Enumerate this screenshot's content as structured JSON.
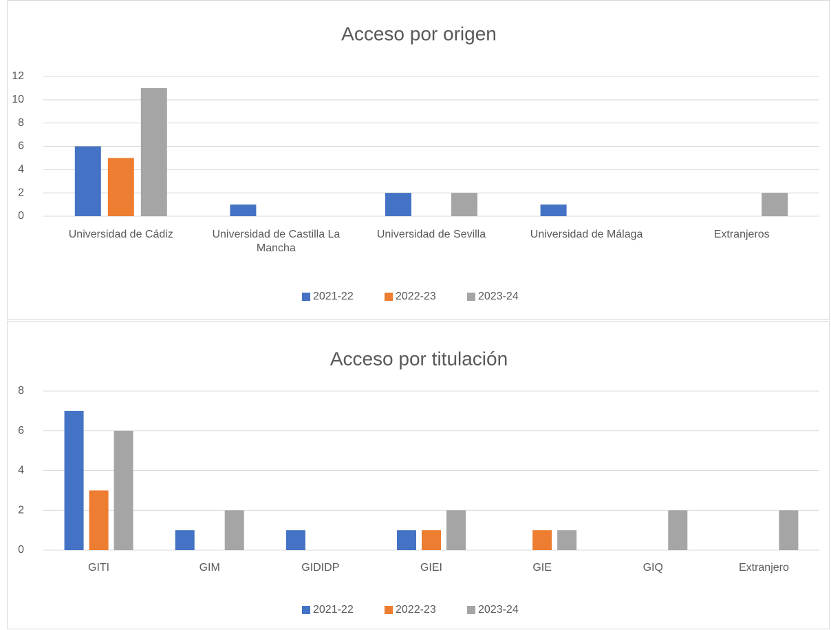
{
  "chart_data": [
    {
      "type": "bar",
      "title": "Acceso por origen",
      "categories": [
        "Universidad de Cádiz",
        "Universidad de Castilla La Mancha",
        "Universidad de Sevilla",
        "Universidad de Málaga",
        "Extranjeros"
      ],
      "series": [
        {
          "name": "2021-22",
          "color": "#4472c4",
          "values": [
            6,
            1,
            2,
            1,
            0
          ]
        },
        {
          "name": "2022-23",
          "color": "#ed7d31",
          "values": [
            5,
            0,
            0,
            0,
            0
          ]
        },
        {
          "name": "2023-24",
          "color": "#a5a5a5",
          "values": [
            11,
            0,
            2,
            0,
            2
          ]
        }
      ],
      "ylim": [
        0,
        12
      ],
      "yticks": [
        0,
        2,
        4,
        6,
        8,
        10,
        12
      ],
      "grid": true,
      "legend": "bottom"
    },
    {
      "type": "bar",
      "title": "Acceso por titulación",
      "categories": [
        "GITI",
        "GIM",
        "GIDIDP",
        "GIEI",
        "GIE",
        "GIQ",
        "Extranjero"
      ],
      "series": [
        {
          "name": "2021-22",
          "color": "#4472c4",
          "values": [
            7,
            1,
            1,
            1,
            0,
            0,
            0
          ]
        },
        {
          "name": "2022-23",
          "color": "#ed7d31",
          "values": [
            3,
            0,
            0,
            1,
            1,
            0,
            0
          ]
        },
        {
          "name": "2023-24",
          "color": "#a5a5a5",
          "values": [
            6,
            2,
            0,
            2,
            1,
            2,
            2
          ]
        }
      ],
      "ylim": [
        0,
        8
      ],
      "yticks": [
        0,
        2,
        4,
        6,
        8
      ],
      "grid": true,
      "legend": "bottom"
    }
  ]
}
